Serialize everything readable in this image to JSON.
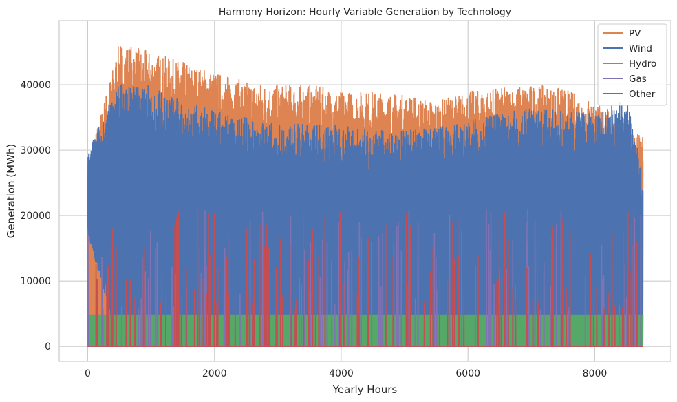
{
  "chart_data": {
    "type": "line",
    "title": "Harmony Horizon: Hourly Variable Generation by Technology",
    "xlabel": "Yearly Hours",
    "ylabel": "Generation (MWh)",
    "xlim": [
      -450,
      9200
    ],
    "ylim": [
      -2300,
      49800
    ],
    "xticks": [
      0,
      2000,
      4000,
      6000,
      8000
    ],
    "xtick_labels": [
      "0",
      "2000",
      "4000",
      "6000",
      "8000"
    ],
    "yticks": [
      0,
      10000,
      20000,
      30000,
      40000
    ],
    "ytick_labels": [
      "0",
      "10000",
      "20000",
      "30000",
      "40000"
    ],
    "grid": true,
    "legend_position": "top-right",
    "series": [
      {
        "name": "PV",
        "color": "#DD8452",
        "pattern": "daily-solar-profile",
        "x": [
          0,
          500,
          1000,
          1500,
          2000,
          2500,
          3000,
          3500,
          4000,
          4500,
          5000,
          5500,
          6000,
          6500,
          7000,
          7500,
          8000,
          8500,
          8760
        ],
        "daily_peak": [
          28000,
          46500,
          45000,
          43500,
          42000,
          40500,
          40000,
          40000,
          39000,
          39000,
          38500,
          37500,
          39000,
          39500,
          40000,
          39500,
          37500,
          34000,
          32000
        ],
        "daily_min": [
          0,
          0,
          0,
          0,
          0,
          0,
          0,
          0,
          0,
          0,
          0,
          0,
          0,
          0,
          0,
          0,
          0,
          0,
          0
        ]
      },
      {
        "name": "Wind",
        "color": "#4C72B0",
        "pattern": "volatile",
        "x": [
          0,
          500,
          1000,
          1500,
          2000,
          2500,
          3000,
          3500,
          4000,
          4500,
          5000,
          5500,
          6000,
          6500,
          7000,
          7500,
          8000,
          8500,
          8760
        ],
        "range_high": [
          30000,
          40500,
          40000,
          37500,
          36000,
          35000,
          34000,
          34000,
          34000,
          33000,
          33000,
          33500,
          34500,
          35500,
          36500,
          36000,
          35500,
          38000,
          27000
        ],
        "range_low": [
          17000,
          0,
          0,
          0,
          0,
          0,
          0,
          0,
          0,
          0,
          0,
          0,
          0,
          0,
          0,
          0,
          0,
          0,
          0
        ]
      },
      {
        "name": "Hydro",
        "color": "#55A868",
        "pattern": "band",
        "x": [
          0,
          8760
        ],
        "high": [
          4800,
          4800
        ],
        "low": [
          0,
          0
        ]
      },
      {
        "name": "Gas",
        "color": "#8172B3",
        "pattern": "occasional-spikes",
        "x": [
          0,
          8760
        ],
        "spike_max": 21000,
        "base": 0
      },
      {
        "name": "Other",
        "color": "#C44E52",
        "pattern": "occasional-spikes",
        "x": [
          0,
          8760
        ],
        "spike_max": 21000,
        "base": 0
      }
    ]
  }
}
